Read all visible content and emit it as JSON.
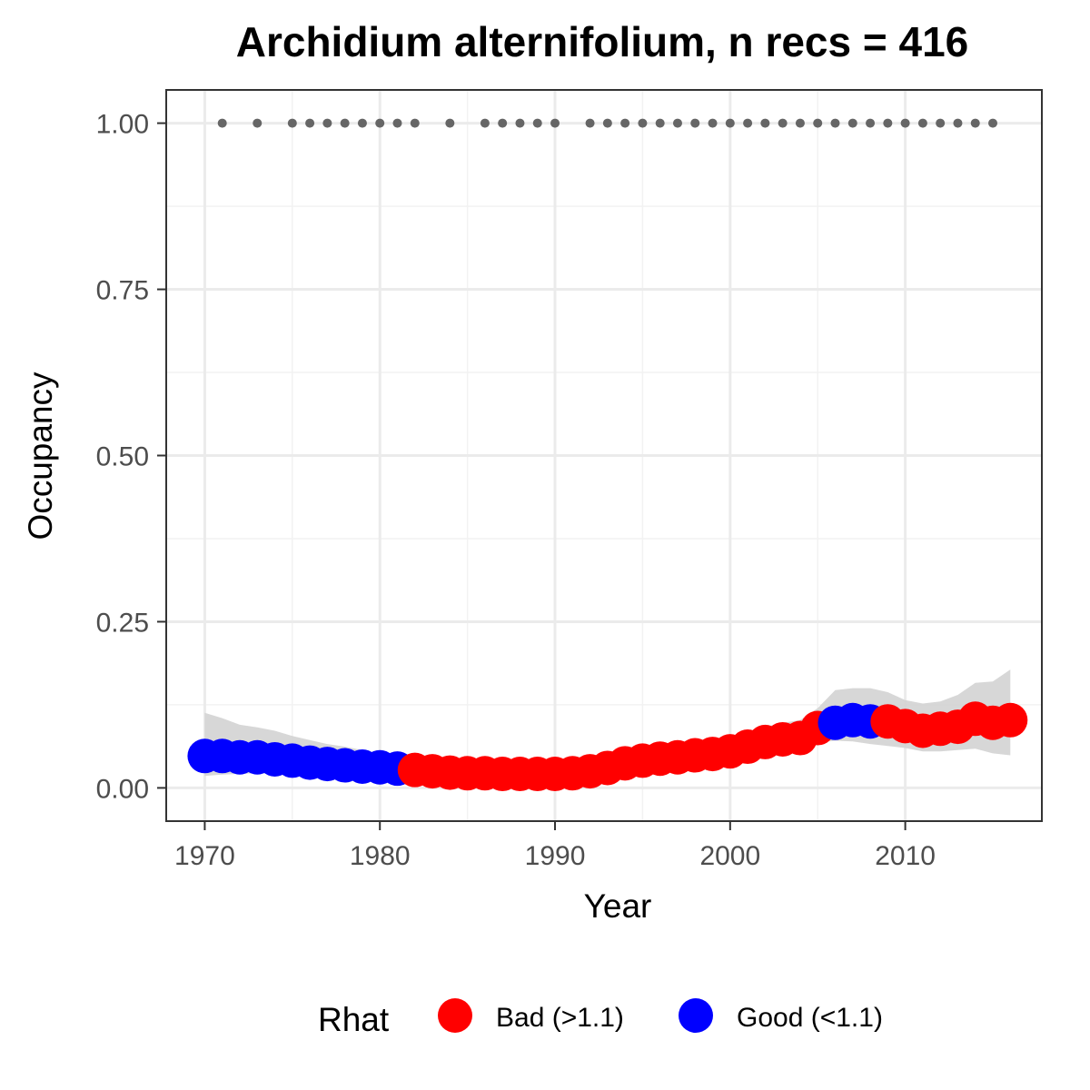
{
  "chart_data": {
    "type": "scatter",
    "title": "Archidium alternifolium, n recs = 416",
    "xlabel": "Year",
    "ylabel": "Occupancy",
    "xlim": [
      1967.8,
      2017.8
    ],
    "ylim": [
      -0.05,
      1.05
    ],
    "x_ticks": [
      1970,
      1980,
      1990,
      2000,
      2010
    ],
    "x_tick_labels": [
      "1970",
      "1980",
      "1990",
      "2000",
      "2010"
    ],
    "y_ticks": [
      0.0,
      0.25,
      0.5,
      0.75,
      1.0
    ],
    "y_tick_labels": [
      "0.00",
      "0.25",
      "0.50",
      "0.75",
      "1.00"
    ],
    "grid": true,
    "legend": {
      "title": "Rhat",
      "position": "bottom",
      "entries": [
        {
          "label": "Bad (>1.1)",
          "color": "#ff0000"
        },
        {
          "label": "Good (<1.1)",
          "color": "#0000ff"
        }
      ]
    },
    "colors": {
      "bad": "#ff0000",
      "good": "#0000ff",
      "ribbon": "#d3d3d3",
      "record": "#666666"
    },
    "record_years": [
      1971,
      1973,
      1975,
      1976,
      1977,
      1978,
      1979,
      1980,
      1981,
      1982,
      1984,
      1986,
      1987,
      1988,
      1989,
      1990,
      1992,
      1993,
      1994,
      1995,
      1996,
      1997,
      1998,
      1999,
      2000,
      2001,
      2002,
      2003,
      2004,
      2005,
      2006,
      2007,
      2008,
      2009,
      2010,
      2011,
      2012,
      2013,
      2014,
      2015
    ],
    "record_value": 1.0,
    "series": [
      {
        "name": "Occupancy",
        "points": [
          {
            "x": 1970,
            "y": 0.048,
            "lower": 0.018,
            "upper": 0.113,
            "rhat": "good"
          },
          {
            "x": 1971,
            "y": 0.048,
            "lower": 0.02,
            "upper": 0.105,
            "rhat": "good"
          },
          {
            "x": 1972,
            "y": 0.046,
            "lower": 0.021,
            "upper": 0.095,
            "rhat": "good"
          },
          {
            "x": 1973,
            "y": 0.046,
            "lower": 0.022,
            "upper": 0.091,
            "rhat": "good"
          },
          {
            "x": 1974,
            "y": 0.043,
            "lower": 0.022,
            "upper": 0.086,
            "rhat": "good"
          },
          {
            "x": 1975,
            "y": 0.041,
            "lower": 0.021,
            "upper": 0.078,
            "rhat": "good"
          },
          {
            "x": 1976,
            "y": 0.038,
            "lower": 0.02,
            "upper": 0.072,
            "rhat": "good"
          },
          {
            "x": 1977,
            "y": 0.036,
            "lower": 0.019,
            "upper": 0.066,
            "rhat": "good"
          },
          {
            "x": 1978,
            "y": 0.034,
            "lower": 0.018,
            "upper": 0.062,
            "rhat": "good"
          },
          {
            "x": 1979,
            "y": 0.032,
            "lower": 0.017,
            "upper": 0.057,
            "rhat": "good"
          },
          {
            "x": 1980,
            "y": 0.031,
            "lower": 0.016,
            "upper": 0.052,
            "rhat": "good"
          },
          {
            "x": 1981,
            "y": 0.029,
            "lower": 0.015,
            "upper": 0.048,
            "rhat": "good"
          },
          {
            "x": 1982,
            "y": 0.027,
            "lower": 0.014,
            "upper": 0.044,
            "rhat": "bad"
          },
          {
            "x": 1983,
            "y": 0.025,
            "lower": 0.013,
            "upper": 0.041,
            "rhat": "bad"
          },
          {
            "x": 1984,
            "y": 0.023,
            "lower": 0.012,
            "upper": 0.038,
            "rhat": "bad"
          },
          {
            "x": 1985,
            "y": 0.022,
            "lower": 0.012,
            "upper": 0.036,
            "rhat": "bad"
          },
          {
            "x": 1986,
            "y": 0.022,
            "lower": 0.011,
            "upper": 0.035,
            "rhat": "bad"
          },
          {
            "x": 1987,
            "y": 0.021,
            "lower": 0.011,
            "upper": 0.034,
            "rhat": "bad"
          },
          {
            "x": 1988,
            "y": 0.021,
            "lower": 0.011,
            "upper": 0.034,
            "rhat": "bad"
          },
          {
            "x": 1989,
            "y": 0.021,
            "lower": 0.011,
            "upper": 0.034,
            "rhat": "bad"
          },
          {
            "x": 1990,
            "y": 0.021,
            "lower": 0.011,
            "upper": 0.035,
            "rhat": "bad"
          },
          {
            "x": 1991,
            "y": 0.022,
            "lower": 0.012,
            "upper": 0.036,
            "rhat": "bad"
          },
          {
            "x": 1992,
            "y": 0.025,
            "lower": 0.014,
            "upper": 0.04,
            "rhat": "bad"
          },
          {
            "x": 1993,
            "y": 0.03,
            "lower": 0.018,
            "upper": 0.046,
            "rhat": "bad"
          },
          {
            "x": 1994,
            "y": 0.037,
            "lower": 0.024,
            "upper": 0.053,
            "rhat": "bad"
          },
          {
            "x": 1995,
            "y": 0.041,
            "lower": 0.028,
            "upper": 0.057,
            "rhat": "bad"
          },
          {
            "x": 1996,
            "y": 0.044,
            "lower": 0.031,
            "upper": 0.06,
            "rhat": "bad"
          },
          {
            "x": 1997,
            "y": 0.046,
            "lower": 0.033,
            "upper": 0.062,
            "rhat": "bad"
          },
          {
            "x": 1998,
            "y": 0.049,
            "lower": 0.035,
            "upper": 0.066,
            "rhat": "bad"
          },
          {
            "x": 1999,
            "y": 0.051,
            "lower": 0.037,
            "upper": 0.069,
            "rhat": "bad"
          },
          {
            "x": 2000,
            "y": 0.055,
            "lower": 0.04,
            "upper": 0.075,
            "rhat": "bad"
          },
          {
            "x": 2001,
            "y": 0.062,
            "lower": 0.045,
            "upper": 0.083,
            "rhat": "bad"
          },
          {
            "x": 2002,
            "y": 0.069,
            "lower": 0.051,
            "upper": 0.092,
            "rhat": "bad"
          },
          {
            "x": 2003,
            "y": 0.073,
            "lower": 0.054,
            "upper": 0.098,
            "rhat": "bad"
          },
          {
            "x": 2004,
            "y": 0.075,
            "lower": 0.056,
            "upper": 0.102,
            "rhat": "bad"
          },
          {
            "x": 2005,
            "y": 0.09,
            "lower": 0.068,
            "upper": 0.12,
            "rhat": "bad"
          },
          {
            "x": 2006,
            "y": 0.098,
            "lower": 0.071,
            "upper": 0.147,
            "rhat": "good"
          },
          {
            "x": 2007,
            "y": 0.102,
            "lower": 0.07,
            "upper": 0.15,
            "rhat": "good"
          },
          {
            "x": 2008,
            "y": 0.1,
            "lower": 0.066,
            "upper": 0.15,
            "rhat": "good"
          },
          {
            "x": 2009,
            "y": 0.1,
            "lower": 0.063,
            "upper": 0.144,
            "rhat": "bad"
          },
          {
            "x": 2010,
            "y": 0.093,
            "lower": 0.06,
            "upper": 0.132,
            "rhat": "bad"
          },
          {
            "x": 2011,
            "y": 0.086,
            "lower": 0.055,
            "upper": 0.127,
            "rhat": "bad"
          },
          {
            "x": 2012,
            "y": 0.089,
            "lower": 0.055,
            "upper": 0.13,
            "rhat": "bad"
          },
          {
            "x": 2013,
            "y": 0.092,
            "lower": 0.057,
            "upper": 0.14,
            "rhat": "bad"
          },
          {
            "x": 2014,
            "y": 0.104,
            "lower": 0.059,
            "upper": 0.158,
            "rhat": "bad"
          },
          {
            "x": 2015,
            "y": 0.098,
            "lower": 0.052,
            "upper": 0.16,
            "rhat": "bad"
          },
          {
            "x": 2016,
            "y": 0.102,
            "lower": 0.049,
            "upper": 0.178,
            "rhat": "bad"
          }
        ]
      }
    ]
  }
}
